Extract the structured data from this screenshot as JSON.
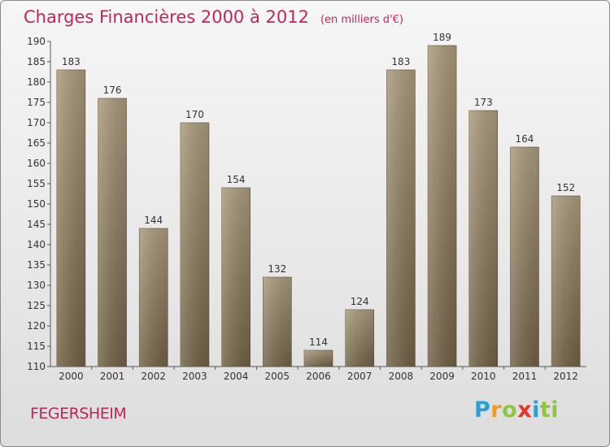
{
  "title": "Charges Financières 2000 à 2012",
  "subtitle": "(en milliers d'€)",
  "commune": "FEGERSHEIM",
  "logo": [
    "P",
    "r",
    "o",
    "x",
    "i",
    "t",
    "i"
  ],
  "colors": {
    "bar": "#8f7d5d",
    "accent": "#c2255c",
    "axis": "#555555"
  },
  "chart_data": {
    "type": "bar",
    "categories": [
      "2000",
      "2001",
      "2002",
      "2003",
      "2004",
      "2005",
      "2006",
      "2007",
      "2008",
      "2009",
      "2010",
      "2011",
      "2012"
    ],
    "values": [
      183,
      176,
      144,
      170,
      154,
      132,
      114,
      124,
      183,
      189,
      173,
      164,
      152
    ],
    "ylim": [
      110,
      190
    ],
    "yticks": [
      110,
      115,
      120,
      125,
      130,
      135,
      140,
      145,
      150,
      155,
      160,
      165,
      170,
      175,
      180,
      185,
      190
    ],
    "grid": false
  }
}
